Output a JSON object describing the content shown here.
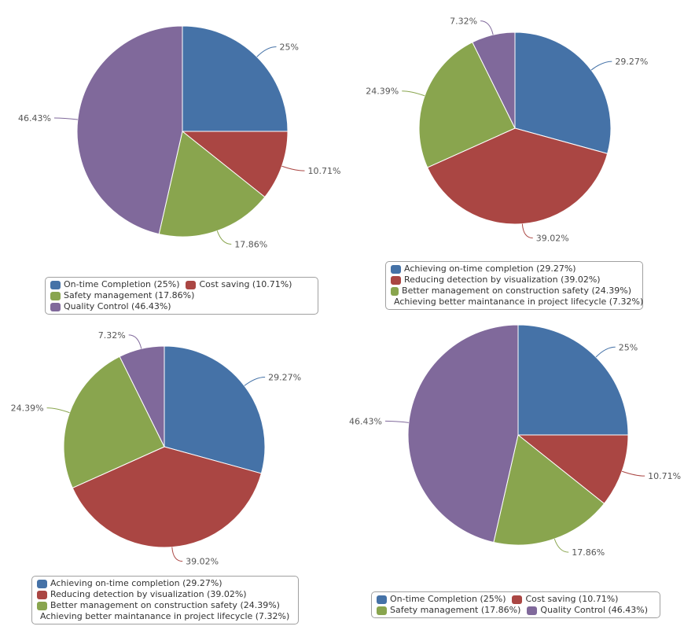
{
  "colors": [
    "#4572a7",
    "#aa4643",
    "#89a54e",
    "#80699b"
  ],
  "chart_data": [
    {
      "type": "pie",
      "categories": [
        "On-time Completion",
        "Cost saving",
        "Safety management",
        "Quality Control"
      ],
      "values": [
        25,
        10.71,
        17.86,
        46.43
      ],
      "data_labels": [
        "25%",
        "10.71%",
        "17.86%",
        "46.43%"
      ],
      "legend": [
        "On-time Completion (25%)",
        "Cost saving (10.71%)",
        "Safety management (17.86%)",
        "Quality Control (46.43%)"
      ],
      "legend_placement": "bottom"
    },
    {
      "type": "pie",
      "categories": [
        "Achieving on-time completion",
        "Reducing detection by visualization",
        "Better management on construction safety",
        "Achieving better maintanance in project lifecycle"
      ],
      "values": [
        29.27,
        39.02,
        24.39,
        7.32
      ],
      "data_labels": [
        "29.27%",
        "39.02%",
        "24.39%",
        "7.32%"
      ],
      "legend": [
        "Achieving on-time completion (29.27%)",
        "Reducing detection by visualization (39.02%)",
        "Better management on construction safety (24.39%)",
        "Achieving better maintanance in project lifecycle (7.32%)"
      ],
      "legend_placement": "bottom"
    },
    {
      "type": "pie",
      "categories": [
        "Achieving on-time completion",
        "Reducing detection by visualization",
        "Better management on construction safety",
        "Achieving better maintanance in project lifecycle"
      ],
      "values": [
        29.27,
        39.02,
        24.39,
        7.32
      ],
      "data_labels": [
        "29.27%",
        "39.02%",
        "24.39%",
        "7.32%"
      ],
      "legend": [
        "Achieving on-time completion (29.27%)",
        "Reducing detection by visualization (39.02%)",
        "Better management on construction safety (24.39%)",
        "Achieving better maintanance in project lifecycle (7.32%)"
      ],
      "legend_placement": "bottom"
    },
    {
      "type": "pie",
      "categories": [
        "On-time Completion",
        "Cost saving",
        "Safety management",
        "Quality Control"
      ],
      "values": [
        25,
        10.71,
        17.86,
        46.43
      ],
      "data_labels": [
        "25%",
        "10.71%",
        "17.86%",
        "46.43%"
      ],
      "legend": [
        "On-time Completion (25%)",
        "Cost saving (10.71%)",
        "Safety management (17.86%)",
        "Quality Control (46.43%)"
      ],
      "legend_placement": "bottom"
    }
  ]
}
